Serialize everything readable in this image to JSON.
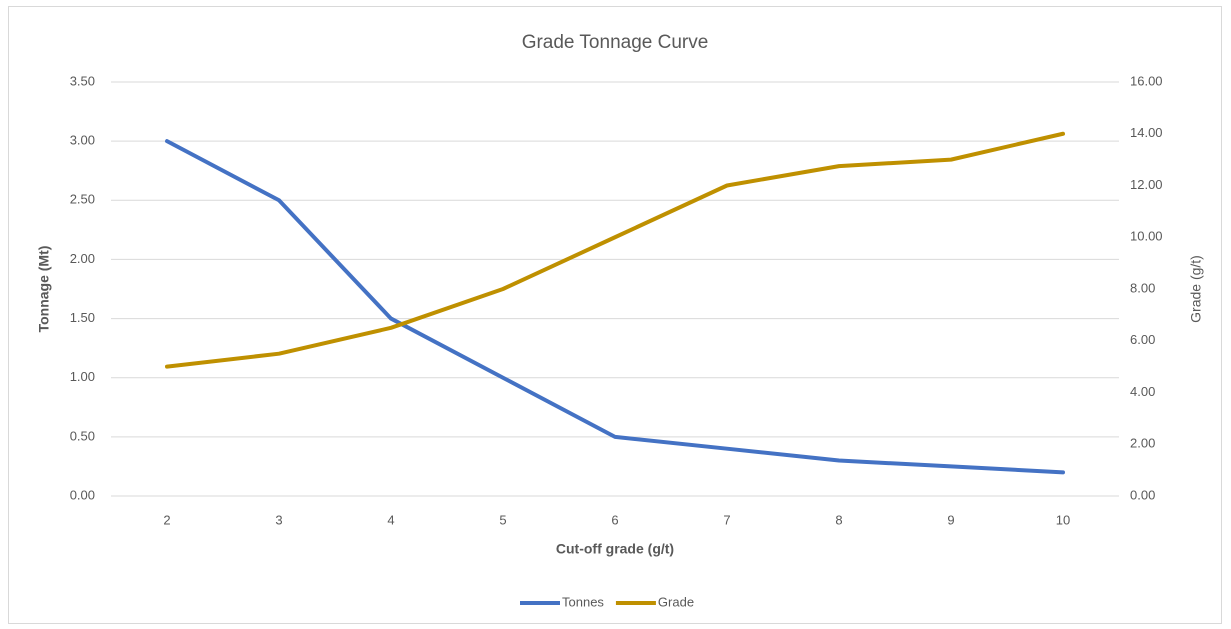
{
  "chart_data": {
    "type": "line",
    "title": "Grade Tonnage Curve",
    "x_label": "Cut-off grade (g/t)",
    "y_label": "Tonnage (Mt)",
    "y2_label": "Grade (g/t)",
    "categories": [
      "2",
      "3",
      "4",
      "5",
      "6",
      "7",
      "8",
      "9",
      "10"
    ],
    "series": [
      {
        "name": "Tonnes",
        "color": "#4472c4",
        "values": [
          3.0,
          2.5,
          1.5,
          1.0,
          0.5,
          0.4,
          0.3,
          0.25,
          0.2
        ]
      },
      {
        "name": "Grade",
        "color": "#bf9000",
        "axis": "y2",
        "values": [
          5,
          5.5,
          6.5,
          8,
          10,
          12,
          12.75,
          13,
          14
        ]
      }
    ],
    "ylim": [
      0,
      3.5
    ],
    "yticks": [
      {
        "value": 0,
        "label": "0.00"
      },
      {
        "value": 0.5,
        "label": "0.50"
      },
      {
        "value": 1,
        "label": "1.00"
      },
      {
        "value": 1.5,
        "label": "1.50"
      },
      {
        "value": 2,
        "label": "2.00"
      },
      {
        "value": 2.5,
        "label": "2.50"
      },
      {
        "value": 3,
        "label": "3.00"
      },
      {
        "value": 3.5,
        "label": "3.50"
      }
    ],
    "y2lim": [
      0,
      16
    ],
    "y2ticks": [
      {
        "value": 0,
        "label": "0.00"
      },
      {
        "value": 2,
        "label": "2.00"
      },
      {
        "value": 4,
        "label": "4.00"
      },
      {
        "value": 6,
        "label": "6.00"
      },
      {
        "value": 8,
        "label": "8.00"
      },
      {
        "value": 10,
        "label": "10.00"
      },
      {
        "value": 12,
        "label": "12.00"
      },
      {
        "value": 14,
        "label": "14.00"
      },
      {
        "value": 16,
        "label": "16.00"
      }
    ],
    "grid": true,
    "legend": "bottom"
  }
}
